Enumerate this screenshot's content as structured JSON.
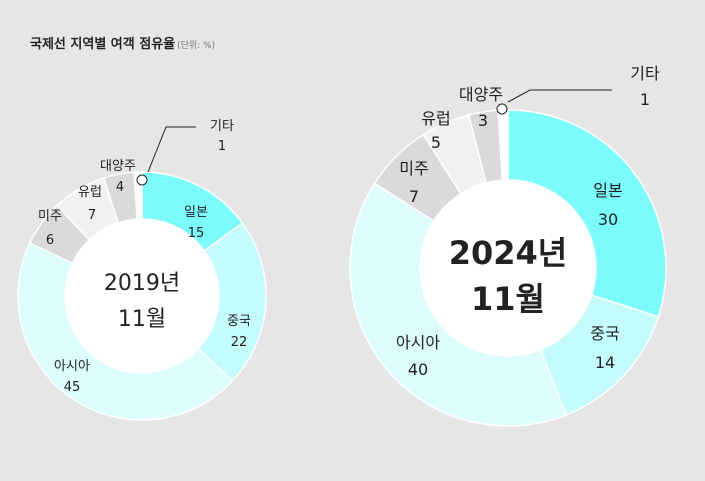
{
  "title": "국제선 지역별 여객 점유율",
  "unit": "(단위: %)",
  "colors": {
    "일본": "#7cfbfc",
    "중국": "#c4fbfc",
    "아시아": "#dcfcfd",
    "미주": "#dadada",
    "유럽": "#f1f1f1",
    "대양주": "#dadada",
    "기타": "#ffffff",
    "outline": "#ffffff",
    "leader": "#222222",
    "background": "#e6e6e6"
  },
  "chart_data": [
    {
      "type": "donut",
      "period_line1": "2019년",
      "period_line2": "11월",
      "categories": [
        "일본",
        "중국",
        "아시아",
        "미주",
        "유럽",
        "대양주",
        "기타"
      ],
      "values": [
        15,
        22,
        45,
        6,
        7,
        4,
        1
      ],
      "value_labels": [
        "15",
        "22",
        "45",
        "6",
        "7",
        "4",
        "1"
      ]
    },
    {
      "type": "donut",
      "period_line1": "2024년",
      "period_line2": "11월",
      "categories": [
        "일본",
        "중국",
        "아시아",
        "미주",
        "유럽",
        "대양주",
        "기타"
      ],
      "values": [
        30,
        14,
        40,
        7,
        5,
        3,
        1
      ],
      "value_labels": [
        "30",
        "14",
        "40",
        "7",
        "5",
        "3",
        "1"
      ]
    }
  ]
}
